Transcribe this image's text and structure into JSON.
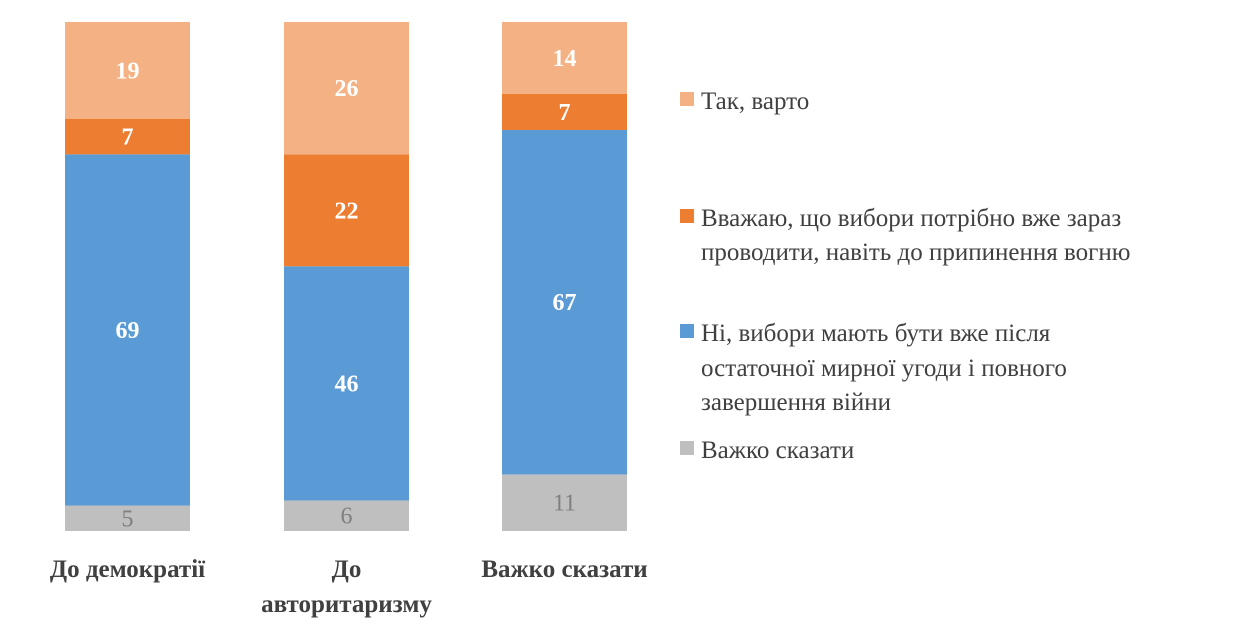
{
  "chart_data": {
    "type": "bar",
    "stacked": true,
    "orientation": "vertical",
    "categories": [
      "До демократії",
      "До авторитаризму",
      "Важко сказати"
    ],
    "category_label_lines": [
      [
        "До демократії"
      ],
      [
        "До",
        "авторитаризму"
      ],
      [
        "Важко сказати"
      ]
    ],
    "series": [
      {
        "name": "Важко сказати",
        "color": "#BFBFBF",
        "label_color": "#7F7F7F",
        "values": [
          5,
          6,
          11
        ]
      },
      {
        "name": "Ні, вибори мають бути вже після остаточної мирної угоди і повного завершення війни",
        "legend_lines": [
          "Ні, вибори мають бути вже після",
          "остаточної мирної угоди і повного",
          "завершення війни"
        ],
        "color": "#5B9BD5",
        "label_color": "#FFFFFF",
        "values": [
          69,
          46,
          67
        ]
      },
      {
        "name": "Вважаю, що вибори потрібно вже зараз проводити, навіть до припинення вогню",
        "legend_lines": [
          "Вважаю, що вибори потрібно вже зараз",
          "проводити, навіть до припинення вогню"
        ],
        "color": "#ED7D31",
        "label_color": "#FFFFFF",
        "values": [
          7,
          22,
          7
        ]
      },
      {
        "name": "Так, варто",
        "legend_lines": [
          "Так, варто"
        ],
        "color": "#F4B183",
        "label_color": "#FFFFFF",
        "values": [
          19,
          26,
          14
        ]
      }
    ],
    "ylim": [
      0,
      100
    ],
    "axes_visible": false,
    "grid": false,
    "data_labels": true,
    "legend_placement": "right"
  }
}
